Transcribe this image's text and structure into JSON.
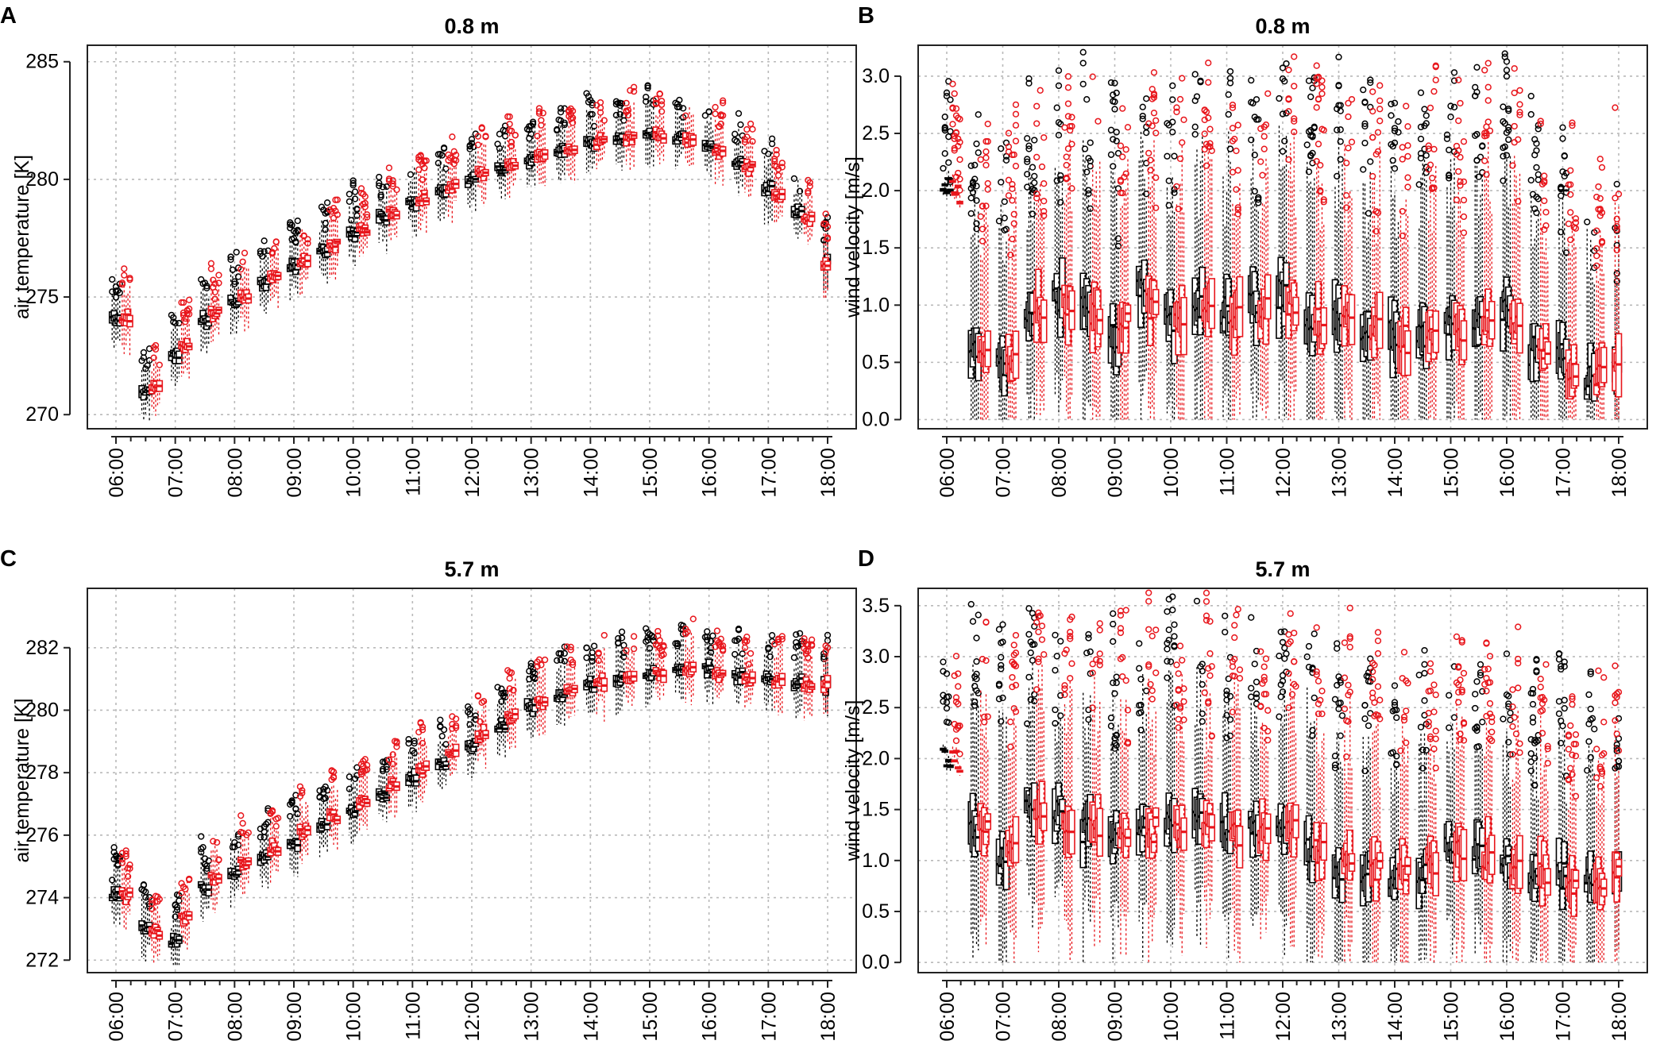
{
  "figure": {
    "colors": {
      "series_black": "#000000",
      "series_red": "#e8161c",
      "grid": "#b9b9b9",
      "frame": "#222222"
    }
  },
  "chart_data": [
    {
      "panel": "A",
      "type": "box",
      "title": "0.8 m",
      "xlabel": "",
      "ylabel": "air temperature [K]",
      "ylim": [
        269.4,
        285.7
      ],
      "yticks": [
        270,
        275,
        280,
        285
      ],
      "ytick_labels": [
        "270",
        "275",
        "280",
        "285"
      ],
      "x_tick_labels": [
        "06:00",
        "07:00",
        "08:00",
        "09:00",
        "10:00",
        "11:00",
        "12:00",
        "13:00",
        "14:00",
        "15:00",
        "16:00",
        "17:00",
        "18:00"
      ],
      "grid": true,
      "series": [
        {
          "name": "black",
          "color": "#000000",
          "times": [
            6.0,
            6.5,
            7.0,
            7.5,
            8.0,
            8.5,
            9.0,
            9.5,
            10.0,
            10.5,
            11.0,
            11.5,
            12.0,
            12.5,
            13.0,
            13.5,
            14.0,
            14.5,
            15.0,
            15.5,
            16.0,
            16.5,
            17.0,
            17.5,
            18.0
          ],
          "medians": [
            274.1,
            271.0,
            272.5,
            274.0,
            274.8,
            275.6,
            276.3,
            277.0,
            277.7,
            278.4,
            279.0,
            279.5,
            280.0,
            280.4,
            280.8,
            281.2,
            281.5,
            281.7,
            281.9,
            281.8,
            281.4,
            280.8,
            279.6,
            278.6,
            276.5
          ]
        },
        {
          "name": "red",
          "color": "#e8161c",
          "times": [
            6.17,
            6.67,
            7.17,
            7.67,
            8.17,
            8.67,
            9.17,
            9.67,
            10.17,
            10.67,
            11.17,
            11.67,
            12.17,
            12.67,
            13.17,
            13.67,
            14.17,
            14.67,
            15.17,
            15.67,
            16.17,
            16.67,
            17.17,
            17.67,
            18.0
          ],
          "medians": [
            274.1,
            271.2,
            272.9,
            274.3,
            275.0,
            275.8,
            276.5,
            277.2,
            277.9,
            278.6,
            279.2,
            279.7,
            280.2,
            280.6,
            281.0,
            281.3,
            281.6,
            281.8,
            281.9,
            281.7,
            281.2,
            280.5,
            279.3,
            278.3,
            276.3
          ]
        }
      ]
    },
    {
      "panel": "B",
      "type": "box",
      "title": "0.8 m",
      "xlabel": "",
      "ylabel": "wind velocity [m/s]",
      "ylim": [
        -0.08,
        3.27
      ],
      "yticks": [
        0.0,
        0.5,
        1.0,
        1.5,
        2.0,
        2.5,
        3.0
      ],
      "ytick_labels": [
        "0.0",
        "0.5",
        "1.0",
        "1.5",
        "2.0",
        "2.5",
        "3.0"
      ],
      "x_tick_labels": [
        "06:00",
        "07:00",
        "08:00",
        "09:00",
        "10:00",
        "11:00",
        "12:00",
        "13:00",
        "14:00",
        "15:00",
        "16:00",
        "17:00",
        "18:00"
      ],
      "grid": true,
      "series": [
        {
          "name": "black",
          "color": "#000000",
          "times": [
            6.0,
            6.5,
            7.0,
            7.5,
            8.0,
            8.5,
            9.0,
            9.5,
            10.0,
            10.5,
            11.0,
            11.5,
            12.0,
            12.5,
            13.0,
            13.5,
            14.0,
            14.5,
            15.0,
            15.5,
            16.0,
            16.5,
            17.0,
            17.5,
            18.0
          ],
          "medians": [
            2.0,
            0.6,
            0.45,
            0.9,
            1.05,
            1.0,
            0.7,
            1.1,
            0.85,
            1.0,
            0.95,
            1.0,
            1.1,
            0.9,
            0.85,
            0.8,
            0.75,
            0.7,
            0.8,
            0.9,
            0.95,
            0.6,
            0.55,
            0.35,
            0.4
          ]
        },
        {
          "name": "red",
          "color": "#e8161c",
          "times": [
            6.17,
            6.67,
            7.17,
            7.67,
            8.17,
            8.67,
            9.17,
            9.67,
            10.17,
            10.67,
            11.17,
            11.67,
            12.17,
            12.67,
            13.17,
            13.67,
            14.17,
            14.67,
            15.17,
            15.67,
            16.17,
            16.67,
            17.17,
            17.67,
            18.0
          ],
          "medians": [
            2.0,
            0.55,
            0.5,
            1.0,
            1.0,
            0.9,
            0.9,
            1.0,
            0.9,
            0.95,
            0.9,
            0.95,
            1.0,
            0.85,
            0.85,
            0.8,
            0.7,
            0.75,
            0.8,
            0.85,
            0.8,
            0.6,
            0.45,
            0.35,
            0.38
          ]
        }
      ]
    },
    {
      "panel": "C",
      "type": "box",
      "title": "5.7 m",
      "xlabel": "",
      "ylabel": "air temperature [K]",
      "ylim": [
        271.6,
        283.9
      ],
      "yticks": [
        272,
        274,
        276,
        278,
        280,
        282
      ],
      "ytick_labels": [
        "272",
        "274",
        "276",
        "278",
        "280",
        "282"
      ],
      "x_tick_labels": [
        "06:00",
        "07:00",
        "08:00",
        "09:00",
        "10:00",
        "11:00",
        "12:00",
        "13:00",
        "14:00",
        "15:00",
        "16:00",
        "17:00",
        "18:00"
      ],
      "grid": true,
      "series": [
        {
          "name": "black",
          "color": "#000000",
          "times": [
            6.0,
            6.5,
            7.0,
            7.5,
            8.0,
            8.5,
            9.0,
            9.5,
            10.0,
            10.5,
            11.0,
            11.5,
            12.0,
            12.5,
            13.0,
            13.5,
            14.0,
            14.5,
            15.0,
            15.5,
            16.0,
            16.5,
            17.0,
            17.5,
            18.0
          ],
          "medians": [
            274.1,
            273.0,
            272.6,
            274.3,
            274.8,
            275.3,
            275.8,
            276.3,
            276.8,
            277.3,
            277.8,
            278.3,
            278.9,
            279.5,
            280.1,
            280.5,
            280.8,
            281.0,
            281.2,
            281.3,
            281.3,
            281.1,
            281.0,
            280.9,
            280.8
          ]
        },
        {
          "name": "red",
          "color": "#e8161c",
          "times": [
            6.17,
            6.67,
            7.17,
            7.67,
            8.17,
            8.67,
            9.17,
            9.67,
            10.17,
            10.67,
            11.17,
            11.67,
            12.17,
            12.67,
            13.17,
            13.67,
            14.17,
            14.67,
            15.17,
            15.67,
            16.17,
            16.67,
            17.17,
            17.67,
            18.0
          ],
          "medians": [
            274.1,
            272.9,
            273.4,
            274.6,
            275.1,
            275.6,
            276.1,
            276.6,
            277.1,
            277.6,
            278.1,
            278.6,
            279.2,
            279.8,
            280.3,
            280.7,
            280.9,
            281.1,
            281.2,
            281.3,
            281.2,
            281.0,
            280.9,
            280.8,
            280.8
          ]
        }
      ]
    },
    {
      "panel": "D",
      "type": "box",
      "title": "5.7 m",
      "xlabel": "",
      "ylabel": "wind velocity [m/s]",
      "ylim": [
        -0.1,
        3.67
      ],
      "yticks": [
        0.0,
        0.5,
        1.0,
        1.5,
        2.0,
        2.5,
        3.0,
        3.5
      ],
      "ytick_labels": [
        "0.0",
        "0.5",
        "1.0",
        "1.5",
        "2.0",
        "2.5",
        "3.0",
        "3.5"
      ],
      "x_tick_labels": [
        "06:00",
        "07:00",
        "08:00",
        "09:00",
        "10:00",
        "11:00",
        "12:00",
        "13:00",
        "14:00",
        "15:00",
        "16:00",
        "17:00",
        "18:00"
      ],
      "grid": true,
      "series": [
        {
          "name": "black",
          "color": "#000000",
          "times": [
            6.0,
            6.5,
            7.0,
            7.5,
            8.0,
            8.5,
            9.0,
            9.5,
            10.0,
            10.5,
            11.0,
            11.5,
            12.0,
            12.5,
            13.0,
            13.5,
            14.0,
            14.5,
            15.0,
            15.5,
            16.0,
            16.5,
            17.0,
            17.5,
            18.0
          ],
          "medians": [
            2.0,
            1.3,
            1.0,
            1.6,
            1.5,
            1.3,
            1.2,
            1.3,
            1.35,
            1.4,
            1.3,
            1.3,
            1.35,
            1.1,
            0.9,
            0.9,
            0.85,
            0.9,
            1.2,
            1.1,
            0.95,
            0.9,
            0.85,
            0.85,
            0.95
          ]
        },
        {
          "name": "red",
          "color": "#e8161c",
          "times": [
            6.17,
            6.67,
            7.17,
            7.67,
            8.17,
            8.67,
            9.17,
            9.67,
            10.17,
            10.67,
            11.17,
            11.67,
            12.17,
            12.67,
            13.17,
            13.67,
            14.17,
            14.67,
            15.17,
            15.67,
            16.17,
            16.67,
            17.17,
            17.67,
            18.0
          ],
          "medians": [
            2.0,
            1.35,
            1.1,
            1.5,
            1.4,
            1.3,
            1.25,
            1.3,
            1.3,
            1.35,
            1.25,
            1.25,
            1.3,
            1.1,
            0.95,
            0.9,
            0.9,
            0.95,
            1.1,
            1.05,
            0.9,
            0.85,
            0.8,
            0.85,
            0.95
          ]
        }
      ]
    }
  ]
}
